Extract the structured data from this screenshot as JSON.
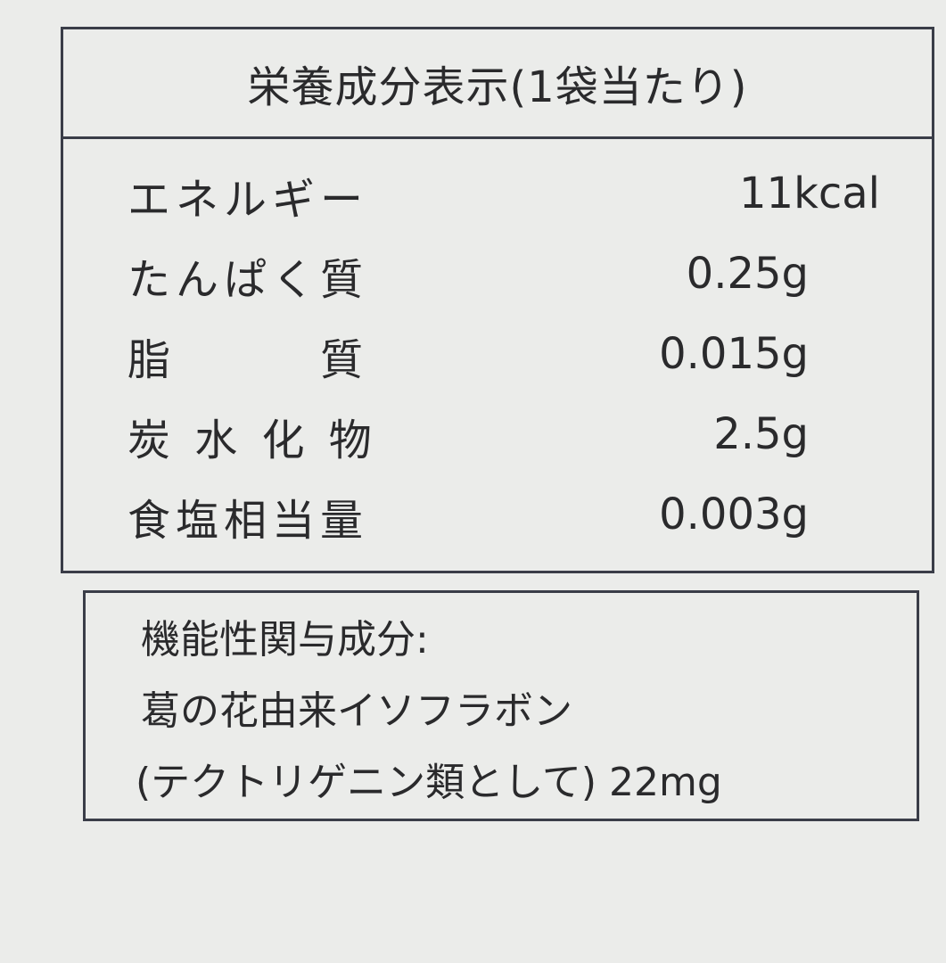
{
  "title": "栄養成分表示(1袋当たり)",
  "nutrients": [
    {
      "label": "エネルギー",
      "value": "11kcal"
    },
    {
      "label": "たんぱく質",
      "value": "0.25g"
    },
    {
      "label": "脂　　　質",
      "value": "0.015g"
    },
    {
      "label": "炭 水 化 物",
      "value": "2.5g"
    },
    {
      "label": "食塩相当量",
      "value": "0.003g"
    }
  ],
  "functional": {
    "heading": "機能性関与成分:",
    "line1": "葛の花由来イソフラボン",
    "line2": "(テクトリゲニン類として) 22mg"
  }
}
